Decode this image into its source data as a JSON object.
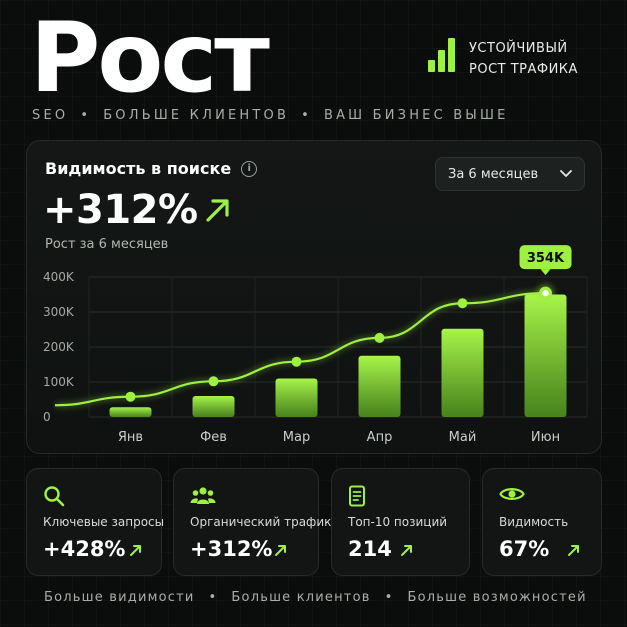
{
  "hero": {
    "title": "Рост",
    "badge_line1": "УСТОЙЧИВЫЙ",
    "badge_line2": "РОСТ ТРАФИКА"
  },
  "tagline": [
    "SEO",
    "БОЛЬШЕ КЛИЕНТОВ",
    "ВАШ БИЗНЕС ВЫШЕ"
  ],
  "panel": {
    "title": "Видимость в поиске",
    "info_icon": "i",
    "value": "+312%",
    "subtitle": "Рост за 6 месяцев",
    "period": "За 6 месяцев"
  },
  "chart_data": {
    "type": "bar",
    "categories": [
      "Янв",
      "Фев",
      "Мар",
      "Апр",
      "Май",
      "Июн"
    ],
    "series": [
      {
        "values": [
          28,
          60,
          110,
          175,
          252,
          350
        ]
      },
      {
        "values": [
          58,
          102,
          158,
          226,
          325,
          354
        ]
      }
    ],
    "yticks": [
      "0",
      "100K",
      "200K",
      "300K",
      "400K"
    ],
    "ylim": [
      0,
      400
    ],
    "callout": "354K",
    "grid": true,
    "accent": "#9ef041"
  },
  "cards": [
    {
      "icon": "search-icon",
      "label": "Ключевые запросы",
      "value": "+428%"
    },
    {
      "icon": "users-icon",
      "label": "Органический трафик",
      "value": "+312%"
    },
    {
      "icon": "document-icon",
      "label": "Топ-10 позиций",
      "value": "214"
    },
    {
      "icon": "eye-icon",
      "label": "Видимость",
      "value": "67%"
    }
  ],
  "footer": [
    "Больше видимости",
    "Больше клиентов",
    "Больше возможностей"
  ]
}
